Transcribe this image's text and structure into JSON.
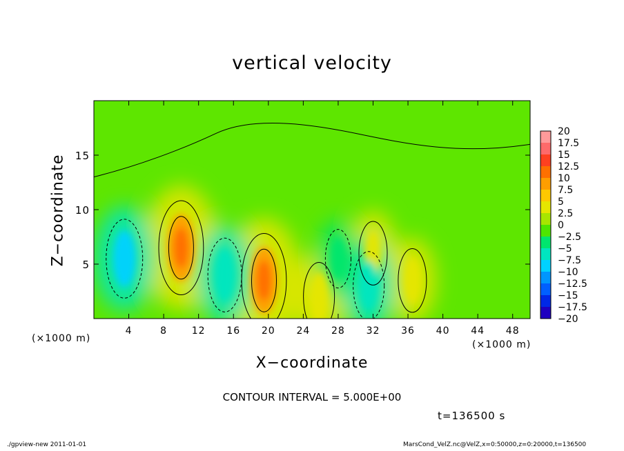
{
  "chart_data": {
    "type": "heatmap",
    "title": "vertical velocity",
    "xlabel": "X−coordinate",
    "ylabel": "Z−coordinate",
    "x_unit_label": "(×1000 m)",
    "xlim": [
      0,
      50
    ],
    "ylim": [
      0,
      20
    ],
    "x_ticks": [
      4,
      8,
      12,
      16,
      20,
      24,
      28,
      32,
      36,
      40,
      44,
      48
    ],
    "y_ticks": [
      5,
      10,
      15
    ],
    "colorbar": {
      "labels": [
        "20",
        "17.5",
        "15",
        "12.5",
        "10",
        "7.5",
        "5",
        "2.5",
        "0",
        "−2.5",
        "−5",
        "−7.5",
        "−10",
        "−12.5",
        "−15",
        "−17.5",
        "−20"
      ],
      "colors": [
        "#ff9a9a",
        "#ff6a6a",
        "#ff4020",
        "#ff7000",
        "#ff9e00",
        "#ffc800",
        "#e6e600",
        "#a8e600",
        "#4ee600",
        "#00e66e",
        "#00e6c0",
        "#00d2ff",
        "#0096ff",
        "#0060ff",
        "#0028e6",
        "#1e00c0",
        "#6a00c0"
      ]
    },
    "regions": [
      {
        "x": 10.0,
        "z": 6.5,
        "value": 10
      },
      {
        "x": 19.5,
        "z": 3.5,
        "value": 10
      },
      {
        "x": 25.8,
        "z": 2.0,
        "value": 5
      },
      {
        "x": 32.0,
        "z": 6.0,
        "value": 4
      },
      {
        "x": 36.5,
        "z": 3.5,
        "value": 4
      },
      {
        "x": 3.5,
        "z": 5.5,
        "value": -7
      },
      {
        "x": 15.0,
        "z": 4.0,
        "value": -6
      },
      {
        "x": 31.5,
        "z": 3.0,
        "value": -5
      },
      {
        "x": 28.0,
        "z": 5.5,
        "value": -3
      }
    ]
  },
  "annotations": {
    "contour_interval": "CONTOUR INTERVAL = 5.000E+00",
    "time": "t=136500 s",
    "footer_left": "./gpview-new   2011-01-01",
    "footer_right": "MarsCond_VelZ.nc@VelZ,x=0:50000,z=0:20000,t=136500"
  }
}
